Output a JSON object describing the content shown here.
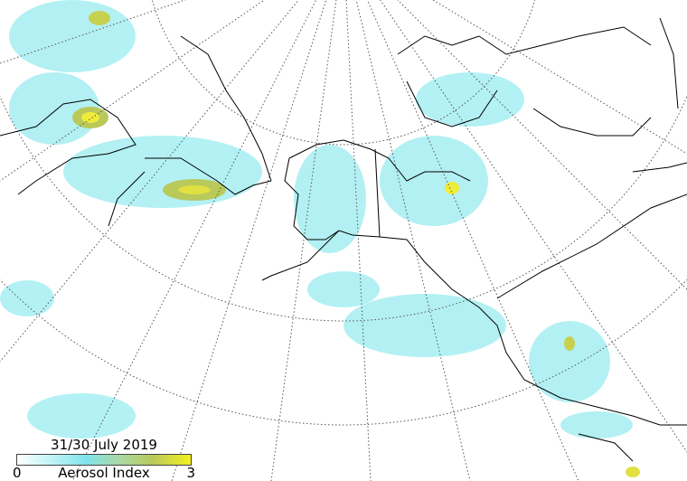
{
  "legend": {
    "date": "31/30 July 2019",
    "min": "0",
    "max": "3",
    "title": "Aerosol Index",
    "colormap": [
      "#ffffff",
      "#bff3f5",
      "#7fe3ea",
      "#a8d9a8",
      "#b9c95a",
      "#f2f020"
    ]
  },
  "colors": {
    "aerosol_low": "#a6eef2",
    "aerosol_mid": "#9fd8a0",
    "aerosol_high": "#f0ec3a",
    "coastline": "#000000",
    "graticule": "#555555"
  }
}
